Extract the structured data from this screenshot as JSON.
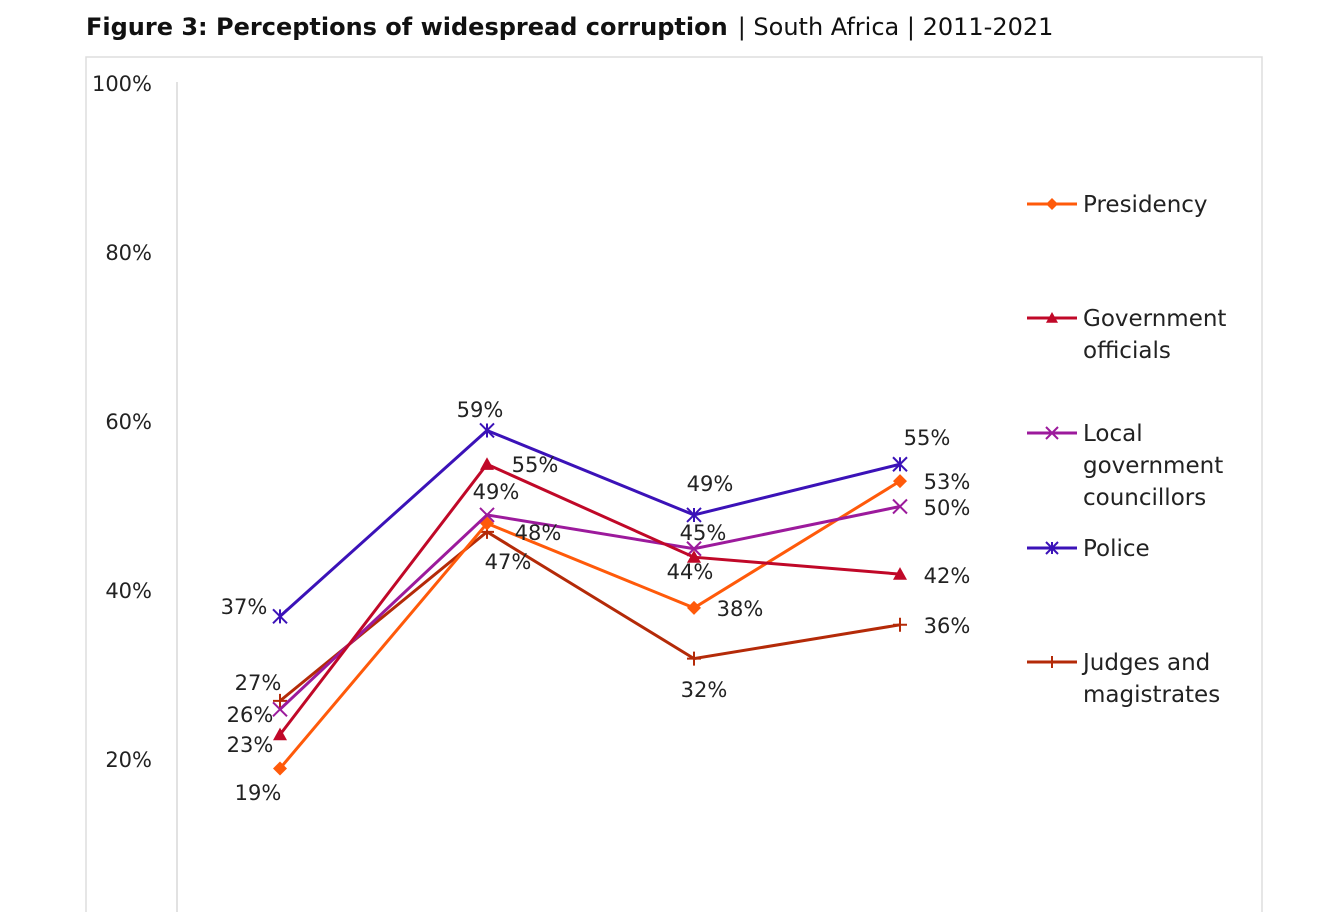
{
  "chart_data": {
    "type": "line",
    "title": "Figure 3: Perceptions of widespread corruption",
    "subtitle": "| South Africa | 2011-2021",
    "ylim": [
      0,
      100
    ],
    "yticks": [
      "20%",
      "40%",
      "60%",
      "80%",
      "100%"
    ],
    "ytick_values": [
      20,
      40,
      60,
      80,
      100
    ],
    "grid": false,
    "legend_placement": "right",
    "series": [
      {
        "name": "Presidency",
        "name_lines": [
          "Presidency"
        ],
        "values": [
          19,
          48,
          38,
          53
        ],
        "color": "#ff5a0a",
        "marker": "diamond"
      },
      {
        "name": "Government officials",
        "name_lines": [
          "Government",
          "officials"
        ],
        "values": [
          23,
          55,
          44,
          42
        ],
        "color": "#c00828",
        "marker": "triangle"
      },
      {
        "name": "Local government councillors",
        "name_lines": [
          "Local",
          "government",
          "councillors"
        ],
        "values": [
          26,
          49,
          45,
          50
        ],
        "color": "#9c1a9c",
        "marker": "x"
      },
      {
        "name": "Police",
        "name_lines": [
          "Police"
        ],
        "values": [
          37,
          59,
          49,
          55
        ],
        "color": "#3b12b8",
        "marker": "asterisk"
      },
      {
        "name": "Judges and magistrates",
        "name_lines": [
          "Judges and",
          "magistrates"
        ],
        "values": [
          27,
          47,
          32,
          36
        ],
        "color": "#b42a08",
        "marker": "plus"
      }
    ]
  }
}
